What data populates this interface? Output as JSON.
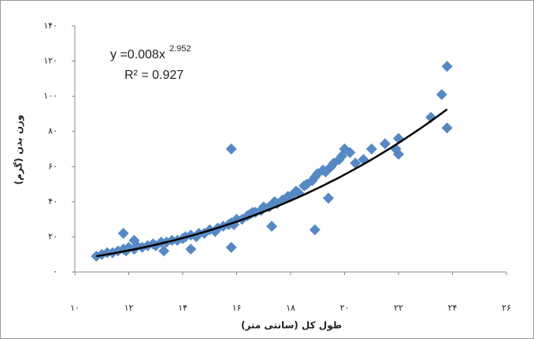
{
  "chart_data": {
    "type": "scatter",
    "x_label": "طول کل (سانتی متر)",
    "y_label": "وزن بدن (گرم)",
    "equation_text": "y =0.008x",
    "equation_exponent": "2.952",
    "r2_text": "R² = 0.927",
    "trendline": {
      "a": 0.008,
      "b": 2.952
    },
    "color": "#5689c4",
    "line_color": "#000000",
    "xlim": [
      10,
      26
    ],
    "ylim": [
      0,
      140
    ],
    "xticks": [
      {
        "value": 10,
        "label": "۱۰"
      },
      {
        "value": 12,
        "label": "۱۲"
      },
      {
        "value": 14,
        "label": "۱۴"
      },
      {
        "value": 16,
        "label": "۱۶"
      },
      {
        "value": 18,
        "label": "۱۸"
      },
      {
        "value": 20,
        "label": "۲۰"
      },
      {
        "value": 22,
        "label": "۲۲"
      },
      {
        "value": 24,
        "label": "۲۴"
      },
      {
        "value": 26,
        "label": "۲۶"
      }
    ],
    "yticks": [
      {
        "value": 0,
        "label": "۰"
      },
      {
        "value": 20,
        "label": "۲۰"
      },
      {
        "value": 40,
        "label": "۴۰"
      },
      {
        "value": 60,
        "label": "۶۰"
      },
      {
        "value": 80,
        "label": "۸۰"
      },
      {
        "value": 100,
        "label": "۱۰۰"
      },
      {
        "value": 120,
        "label": "۱۲۰"
      },
      {
        "value": 140,
        "label": "۱۴۰"
      }
    ],
    "x": [
      10.8,
      11.0,
      11.2,
      11.4,
      11.6,
      11.8,
      11.9,
      12.0,
      12.2,
      12.3,
      12.5,
      12.7,
      12.9,
      13.0,
      13.2,
      13.4,
      13.6,
      13.8,
      14.0,
      14.1,
      14.3,
      14.5,
      14.6,
      14.8,
      15.0,
      15.2,
      15.3,
      15.5,
      15.7,
      15.8,
      15.9,
      16.0,
      16.2,
      16.4,
      16.5,
      16.7,
      16.9,
      17.0,
      17.2,
      17.4,
      17.5,
      17.7,
      17.9,
      18.0,
      18.2,
      18.3,
      18.5,
      18.6,
      18.8,
      18.9,
      19.0,
      19.2,
      19.3,
      19.5,
      19.6,
      19.8,
      19.9,
      20.0,
      20.2,
      20.4,
      20.7,
      21.0,
      21.5,
      21.9,
      22.0,
      22.0,
      23.2,
      23.6,
      23.8,
      23.8,
      11.8,
      15.8,
      18.9,
      15.8,
      14.3,
      17.3,
      19.4,
      16.6,
      13.3,
      12.2
    ],
    "y": [
      9,
      10,
      11,
      11,
      12,
      13,
      12,
      14,
      13,
      15,
      14,
      15,
      16,
      15,
      17,
      17,
      18,
      18,
      19,
      20,
      21,
      20,
      22,
      22,
      24,
      23,
      25,
      26,
      27,
      28,
      27,
      30,
      30,
      32,
      33,
      34,
      35,
      37,
      37,
      40,
      39,
      41,
      43,
      43,
      46,
      45,
      49,
      50,
      52,
      54,
      56,
      58,
      57,
      60,
      62,
      64,
      66,
      70,
      68,
      62,
      64,
      70,
      73,
      70,
      76,
      67,
      88,
      101,
      117,
      82,
      22,
      70,
      24,
      14,
      13,
      26,
      42,
      34,
      12,
      18
    ]
  }
}
